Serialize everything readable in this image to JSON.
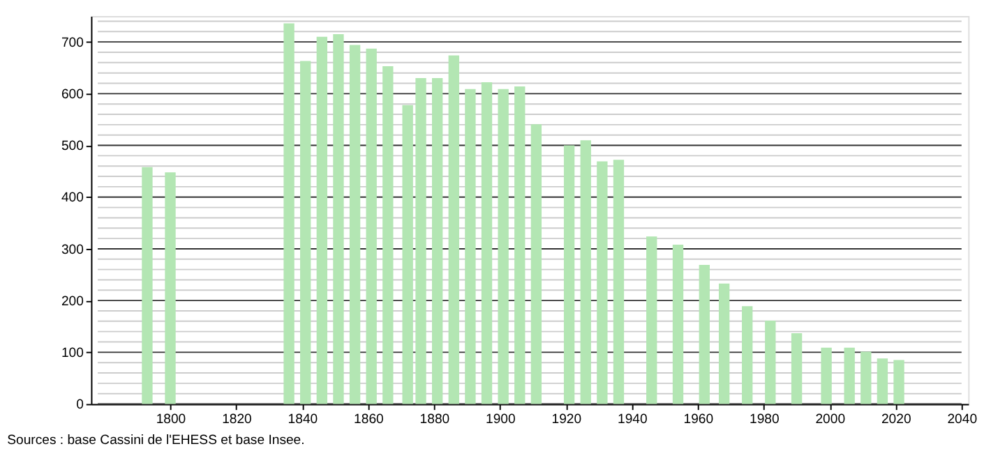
{
  "chart_data": {
    "type": "bar",
    "x": [
      1793,
      1800,
      1836,
      1841,
      1846,
      1851,
      1856,
      1861,
      1866,
      1872,
      1876,
      1881,
      1886,
      1891,
      1896,
      1901,
      1906,
      1911,
      1921,
      1926,
      1931,
      1936,
      1946,
      1954,
      1962,
      1968,
      1975,
      1982,
      1990,
      1999,
      2006,
      2011,
      2016,
      2021
    ],
    "values": [
      458,
      448,
      736,
      663,
      710,
      715,
      694,
      687,
      653,
      578,
      630,
      630,
      674,
      609,
      622,
      609,
      614,
      541,
      500,
      510,
      469,
      472,
      324,
      308,
      269,
      233,
      189,
      161,
      137,
      109,
      109,
      101,
      88,
      85
    ],
    "color": "#b3e6b3",
    "xlim": [
      1778,
      2040
    ],
    "xticks": [
      1800,
      1820,
      1840,
      1860,
      1880,
      1900,
      1920,
      1940,
      1960,
      1980,
      2000,
      2020,
      2040
    ],
    "ylim": [
      0,
      750
    ],
    "yticks": [
      0,
      100,
      200,
      300,
      400,
      500,
      600,
      700
    ],
    "grid": "y",
    "annotations": [
      "Sources : base Cassini de l'EHESS et base Insee."
    ]
  }
}
